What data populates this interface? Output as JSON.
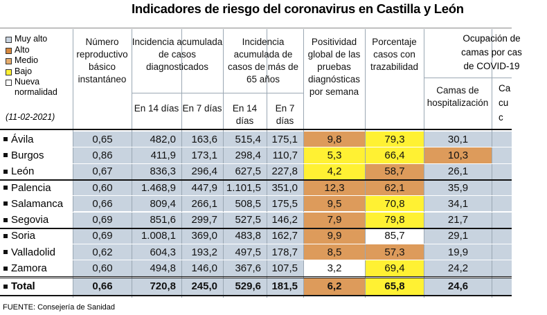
{
  "title": "Indicadores de riesgo del coronavirus en Castilla y León",
  "legend": {
    "items": [
      "Muy alto",
      "Alto",
      "Medio",
      "Bajo",
      "Nueva normalidad"
    ],
    "date": "(11-02-2021)"
  },
  "headers": {
    "r": "Número reproductivo básico instantáneo",
    "incidence": "Incidencia acumulada de casos diagnosticados",
    "incidence65": "Incidencia acumulada de casos de más de 65 años",
    "d14": "En 14 días",
    "d7": "En 7 días",
    "positivity": "Positividad global de las pruebas diagnósticas por semana",
    "traceability": "Porcentaje casos con trazabilidad",
    "occupancy": [
      "Ocupación de",
      "camas por cas",
      "de COVID-19"
    ],
    "beds": "Camas de hospitalización",
    "cut": [
      "Ca",
      "cu",
      "c"
    ]
  },
  "rows": [
    {
      "name": "Ávila",
      "cells": [
        "0,65",
        "482,0",
        "163,6",
        "515,4",
        "175,1",
        "9,8",
        "79,3",
        "30,1"
      ]
    },
    {
      "name": "Burgos",
      "cells": [
        "0,86",
        "411,9",
        "173,1",
        "298,4",
        "110,7",
        "5,3",
        "66,4",
        "10,3"
      ]
    },
    {
      "name": "León",
      "cells": [
        "0,67",
        "836,3",
        "296,4",
        "627,5",
        "227,8",
        "4,2",
        "58,7",
        "26,1"
      ]
    },
    {
      "name": "Palencia",
      "cells": [
        "0,60",
        "1.468,9",
        "447,9",
        "1.101,5",
        "351,0",
        "12,3",
        "62,1",
        "35,9"
      ]
    },
    {
      "name": "Salamanca",
      "cells": [
        "0,66",
        "809,4",
        "266,1",
        "508,5",
        "175,5",
        "9,5",
        "70,8",
        "34,1"
      ]
    },
    {
      "name": "Segovia",
      "cells": [
        "0,69",
        "851,6",
        "299,7",
        "527,5",
        "146,2",
        "7,9",
        "79,8",
        "21,7"
      ]
    },
    {
      "name": "Soria",
      "cells": [
        "0,69",
        "1.008,1",
        "369,0",
        "483,8",
        "162,7",
        "9,9",
        "85,7",
        "29,1"
      ]
    },
    {
      "name": "Valladolid",
      "cells": [
        "0,62",
        "604,3",
        "193,2",
        "497,5",
        "178,7",
        "8,5",
        "57,3",
        "19,9"
      ]
    },
    {
      "name": "Zamora",
      "cells": [
        "0,60",
        "494,8",
        "146,0",
        "367,6",
        "107,5",
        "3,2",
        "69,4",
        "24,2"
      ]
    }
  ],
  "total": {
    "name": "Total",
    "cells": [
      "0,66",
      "720,8",
      "245,0",
      "529,6",
      "181,5",
      "6,2",
      "65,8",
      "24,6"
    ]
  },
  "source": "FUENTE: Consejería de Sanidad"
}
